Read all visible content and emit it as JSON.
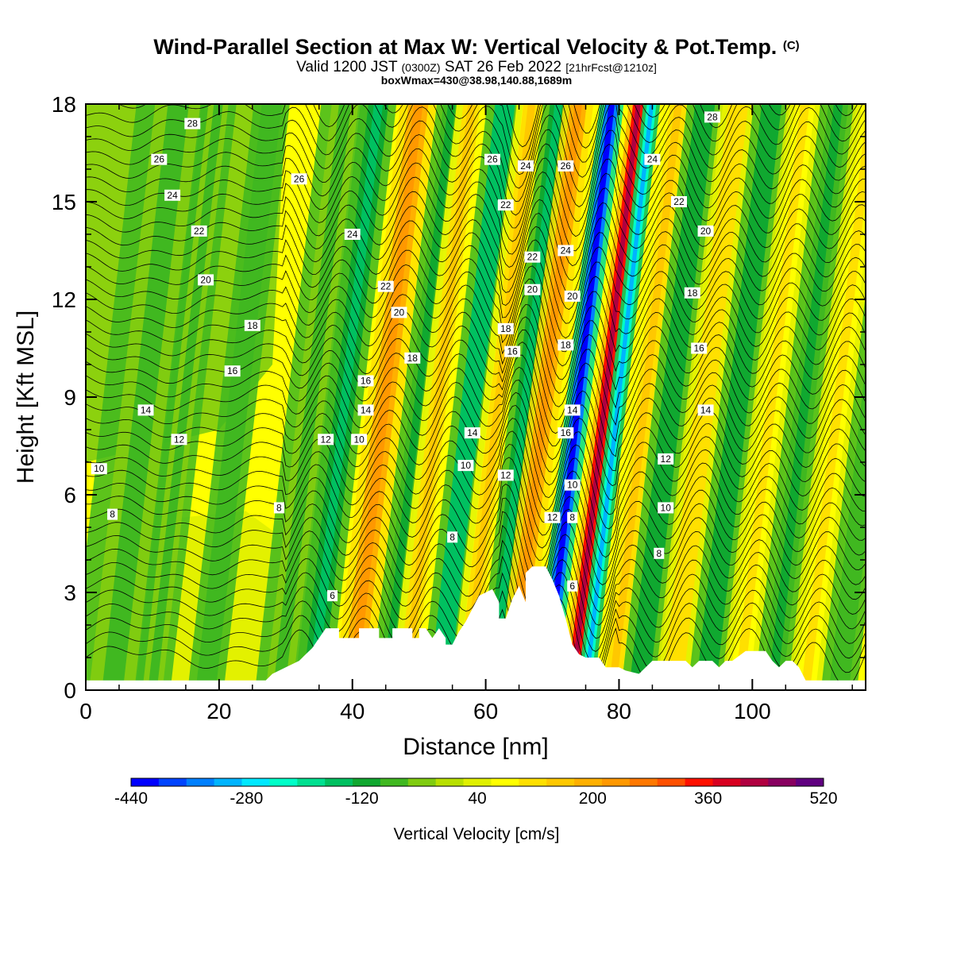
{
  "header": {
    "title": "Wind-Parallel Section at Max W: Vertical Velocity & Pot.Temp.",
    "title_mark": "(C)",
    "valid_prefix": "Valid 1200 JST",
    "valid_zulu": "(0300Z)",
    "valid_date": "SAT 26 Feb 2022",
    "valid_fcst": "[21hrFcst@1210z]",
    "boxinfo": "boxWmax=430@38.98,140.88,1689m"
  },
  "chart_data": {
    "type": "heatmap",
    "xlabel": "Distance [nm]",
    "ylabel": "Height [Kft MSL]",
    "xlim": [
      0,
      117
    ],
    "ylim": [
      0,
      18
    ],
    "xticks": [
      0,
      20,
      40,
      60,
      80,
      100
    ],
    "yticks": [
      0,
      3,
      6,
      9,
      12,
      15,
      18
    ],
    "colorbar": {
      "label": "Vertical Velocity [cm/s]",
      "tick_labels": [
        "-440",
        "-280",
        "-120",
        "40",
        "200",
        "360",
        "520"
      ],
      "colors": [
        "#0000ff",
        "#0044ff",
        "#0080ff",
        "#00b4ff",
        "#00e8ff",
        "#00ffc8",
        "#00e090",
        "#00c060",
        "#10a830",
        "#40b820",
        "#80cc10",
        "#b8e000",
        "#e0f000",
        "#ffff00",
        "#ffe000",
        "#ffc800",
        "#ffb000",
        "#ff9800",
        "#ff7800",
        "#ff5000",
        "#ff1000",
        "#d80020",
        "#b00040",
        "#880060",
        "#600080"
      ]
    },
    "velocity_bands": [
      {
        "x": 4,
        "w": 7,
        "value": -60
      },
      {
        "x": 10,
        "w": 3,
        "value": -60
      },
      {
        "x": 18,
        "w": 3,
        "value": -90
      },
      {
        "x": 29,
        "w": 4,
        "value": -70
      },
      {
        "x": 34,
        "w": 3,
        "value": -140
      },
      {
        "x": 40,
        "w": 3,
        "value": 240
      },
      {
        "x": 45,
        "w": 2.5,
        "value": -110
      },
      {
        "x": 48,
        "w": 2.5,
        "value": 160
      },
      {
        "x": 53,
        "w": 3,
        "value": -170
      },
      {
        "x": 57,
        "w": 2.5,
        "value": 150
      },
      {
        "x": 61,
        "w": 2.5,
        "value": -140
      },
      {
        "x": 64,
        "w": 2.5,
        "value": 230
      },
      {
        "x": 69,
        "w": 2.0,
        "value": -430
      },
      {
        "x": 73,
        "w": 1.6,
        "value": 420
      },
      {
        "x": 75,
        "w": 1.4,
        "value": -300
      },
      {
        "x": 79,
        "w": 2.5,
        "value": 140
      },
      {
        "x": 83,
        "w": 3,
        "value": -130
      },
      {
        "x": 88,
        "w": 3,
        "value": 130
      },
      {
        "x": 93,
        "w": 3,
        "value": -120
      },
      {
        "x": 98,
        "w": 3,
        "value": 110
      },
      {
        "x": 103,
        "w": 3,
        "value": -110
      },
      {
        "x": 108,
        "w": 3,
        "value": 100
      },
      {
        "x": 113,
        "w": 3,
        "value": -90
      }
    ],
    "terrain": [
      [
        0,
        0.3
      ],
      [
        24,
        0.3
      ],
      [
        27,
        0.3
      ],
      [
        28,
        0.5
      ],
      [
        30,
        0.7
      ],
      [
        32,
        0.9
      ],
      [
        33,
        1.1
      ],
      [
        34,
        1.3
      ],
      [
        35,
        1.6
      ],
      [
        36,
        1.9
      ],
      [
        38,
        1.9
      ],
      [
        38,
        1.6
      ],
      [
        41,
        1.6
      ],
      [
        41,
        1.9
      ],
      [
        44,
        1.9
      ],
      [
        44,
        1.6
      ],
      [
        46,
        1.6
      ],
      [
        46,
        1.9
      ],
      [
        49,
        1.9
      ],
      [
        49,
        1.6
      ],
      [
        50,
        1.6
      ],
      [
        50,
        1.9
      ],
      [
        51,
        1.9
      ],
      [
        52,
        1.6
      ],
      [
        53,
        1.9
      ],
      [
        54,
        1.6
      ],
      [
        54,
        1.4
      ],
      [
        55,
        1.4
      ],
      [
        56,
        1.8
      ],
      [
        57,
        2.1
      ],
      [
        58,
        2.5
      ],
      [
        59,
        2.9
      ],
      [
        61,
        3.1
      ],
      [
        62,
        2.7
      ],
      [
        62,
        2.2
      ],
      [
        63,
        2.2
      ],
      [
        64,
        2.8
      ],
      [
        65,
        3.2
      ],
      [
        66,
        2.7
      ],
      [
        66,
        3.6
      ],
      [
        67,
        3.8
      ],
      [
        69,
        3.8
      ],
      [
        70,
        3.4
      ],
      [
        71,
        2.9
      ],
      [
        72,
        2.2
      ],
      [
        73,
        1.4
      ],
      [
        74,
        1.1
      ],
      [
        75,
        1.0
      ],
      [
        77,
        1.0
      ],
      [
        78,
        0.7
      ],
      [
        80,
        0.7
      ],
      [
        81,
        0.6
      ],
      [
        83,
        0.5
      ],
      [
        84,
        0.7
      ],
      [
        85,
        0.9
      ],
      [
        90,
        0.9
      ],
      [
        91,
        0.7
      ],
      [
        92,
        0.9
      ],
      [
        94,
        0.9
      ],
      [
        95,
        0.7
      ],
      [
        96,
        0.9
      ],
      [
        97,
        0.9
      ],
      [
        99,
        1.2
      ],
      [
        102,
        1.2
      ],
      [
        103,
        0.9
      ],
      [
        104,
        0.7
      ],
      [
        105,
        0.9
      ],
      [
        106,
        0.9
      ],
      [
        107,
        0.7
      ],
      [
        108,
        0.3
      ],
      [
        117,
        0.3
      ]
    ],
    "theta_contours": [
      {
        "label": "6",
        "label_at": [
          37,
          2.9
        ]
      },
      {
        "label": "6",
        "label_at": [
          73,
          3.2
        ]
      },
      {
        "label": "8",
        "label_at": [
          4,
          5.4
        ]
      },
      {
        "label": "8",
        "label_at": [
          29,
          5.6
        ]
      },
      {
        "label": "8",
        "label_at": [
          55,
          4.7
        ]
      },
      {
        "label": "8",
        "label_at": [
          73,
          5.3
        ]
      },
      {
        "label": "8",
        "label_at": [
          86,
          4.2
        ]
      },
      {
        "label": "10",
        "label_at": [
          2,
          6.8
        ]
      },
      {
        "label": "10",
        "label_at": [
          41,
          7.7
        ]
      },
      {
        "label": "10",
        "label_at": [
          57,
          6.9
        ]
      },
      {
        "label": "10",
        "label_at": [
          73,
          6.3
        ]
      },
      {
        "label": "10",
        "label_at": [
          87,
          5.6
        ]
      },
      {
        "label": "12",
        "label_at": [
          14,
          7.7
        ]
      },
      {
        "label": "12",
        "label_at": [
          36,
          7.7
        ]
      },
      {
        "label": "12",
        "label_at": [
          63,
          6.6
        ]
      },
      {
        "label": "12",
        "label_at": [
          70,
          5.3
        ]
      },
      {
        "label": "12",
        "label_at": [
          87,
          7.1
        ]
      },
      {
        "label": "14",
        "label_at": [
          9,
          8.6
        ]
      },
      {
        "label": "14",
        "label_at": [
          42,
          8.6
        ]
      },
      {
        "label": "14",
        "label_at": [
          58,
          7.9
        ]
      },
      {
        "label": "14",
        "label_at": [
          73,
          8.6
        ]
      },
      {
        "label": "14",
        "label_at": [
          93,
          8.6
        ]
      },
      {
        "label": "16",
        "label_at": [
          22,
          9.8
        ]
      },
      {
        "label": "16",
        "label_at": [
          42,
          9.5
        ]
      },
      {
        "label": "16",
        "label_at": [
          64,
          10.4
        ]
      },
      {
        "label": "16",
        "label_at": [
          72,
          7.9
        ]
      },
      {
        "label": "16",
        "label_at": [
          92,
          10.5
        ]
      },
      {
        "label": "18",
        "label_at": [
          25,
          11.2
        ]
      },
      {
        "label": "18",
        "label_at": [
          49,
          10.2
        ]
      },
      {
        "label": "18",
        "label_at": [
          63,
          11.1
        ]
      },
      {
        "label": "18",
        "label_at": [
          72,
          10.6
        ]
      },
      {
        "label": "18",
        "label_at": [
          91,
          12.2
        ]
      },
      {
        "label": "20",
        "label_at": [
          18,
          12.6
        ]
      },
      {
        "label": "20",
        "label_at": [
          47,
          11.6
        ]
      },
      {
        "label": "20",
        "label_at": [
          67,
          12.3
        ]
      },
      {
        "label": "20",
        "label_at": [
          73,
          12.1
        ]
      },
      {
        "label": "20",
        "label_at": [
          93,
          14.1
        ]
      },
      {
        "label": "22",
        "label_at": [
          17,
          14.1
        ]
      },
      {
        "label": "22",
        "label_at": [
          45,
          12.4
        ]
      },
      {
        "label": "22",
        "label_at": [
          63,
          14.9
        ]
      },
      {
        "label": "22",
        "label_at": [
          67,
          13.3
        ]
      },
      {
        "label": "22",
        "label_at": [
          89,
          15.0
        ]
      },
      {
        "label": "24",
        "label_at": [
          13,
          15.2
        ]
      },
      {
        "label": "24",
        "label_at": [
          40,
          14.0
        ]
      },
      {
        "label": "24",
        "label_at": [
          66,
          16.1
        ]
      },
      {
        "label": "24",
        "label_at": [
          72,
          13.5
        ]
      },
      {
        "label": "24",
        "label_at": [
          85,
          16.3
        ]
      },
      {
        "label": "26",
        "label_at": [
          11,
          16.3
        ]
      },
      {
        "label": "26",
        "label_at": [
          32,
          15.7
        ]
      },
      {
        "label": "26",
        "label_at": [
          61,
          16.3
        ]
      },
      {
        "label": "26",
        "label_at": [
          72,
          16.1
        ]
      },
      {
        "label": "28",
        "label_at": [
          16,
          17.4
        ]
      },
      {
        "label": "28",
        "label_at": [
          94,
          17.6
        ]
      }
    ]
  }
}
